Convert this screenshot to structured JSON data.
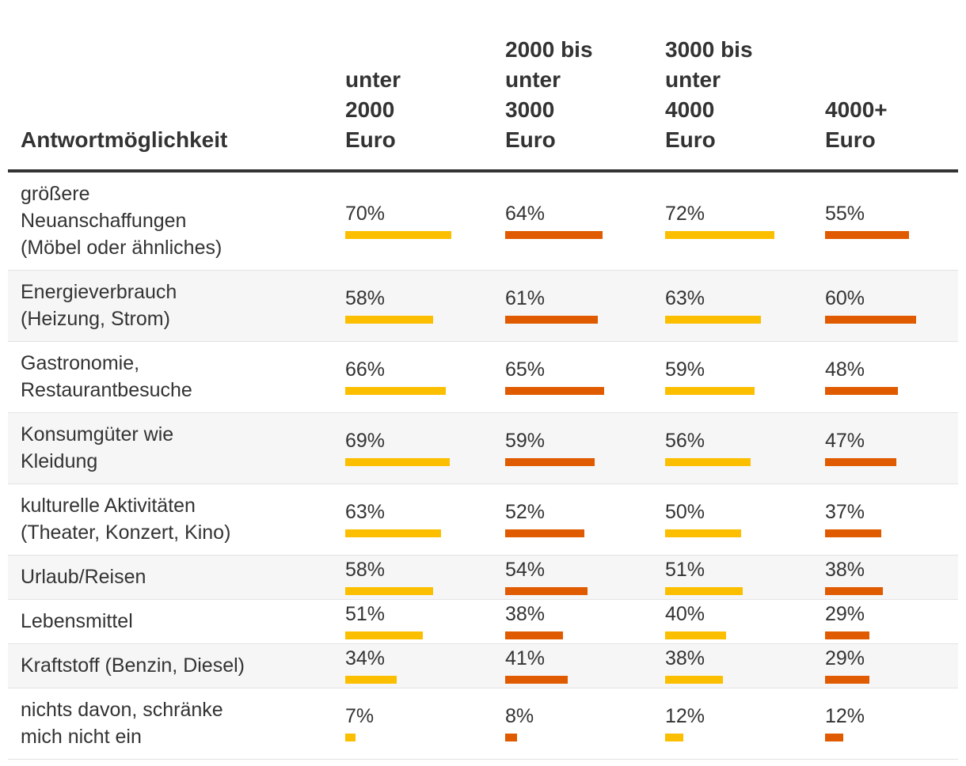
{
  "chart_data": {
    "type": "table",
    "title": "",
    "columns": [
      {
        "label_lines": [
          "Antwortmöglichkeit"
        ]
      },
      {
        "label_lines": [
          "unter",
          "2000",
          "Euro"
        ]
      },
      {
        "label_lines": [
          "2000 bis",
          "unter",
          "3000",
          "Euro"
        ]
      },
      {
        "label_lines": [
          "3000 bis",
          "unter",
          "4000",
          "Euro"
        ]
      },
      {
        "label_lines": [
          "4000+",
          "Euro"
        ]
      }
    ],
    "value_max": 100,
    "bar_colors": [
      "#fcbf00",
      "#e05b00",
      "#fcbf00",
      "#e05b00"
    ],
    "rows": [
      {
        "label_lines": [
          "größere",
          "Neuanschaffungen",
          "(Möbel oder ähnliches)"
        ],
        "values": [
          70,
          64,
          72,
          55
        ],
        "display": [
          "70%",
          "64%",
          "72%",
          "55%"
        ]
      },
      {
        "label_lines": [
          "Energieverbrauch",
          "(Heizung, Strom)"
        ],
        "values": [
          58,
          61,
          63,
          60
        ],
        "display": [
          "58%",
          "61%",
          "63%",
          "60%"
        ]
      },
      {
        "label_lines": [
          "Gastronomie,",
          "Restaurantbesuche"
        ],
        "values": [
          66,
          65,
          59,
          48
        ],
        "display": [
          "66%",
          "65%",
          "59%",
          "48%"
        ]
      },
      {
        "label_lines": [
          "Konsumgüter wie",
          "Kleidung"
        ],
        "values": [
          69,
          59,
          56,
          47
        ],
        "display": [
          "69%",
          "59%",
          "56%",
          "47%"
        ]
      },
      {
        "label_lines": [
          "kulturelle Aktivitäten",
          "(Theater, Konzert, Kino)"
        ],
        "values": [
          63,
          52,
          50,
          37
        ],
        "display": [
          "63%",
          "52%",
          "50%",
          "37%"
        ]
      },
      {
        "label_lines": [
          "Urlaub/Reisen"
        ],
        "values": [
          58,
          54,
          51,
          38
        ],
        "display": [
          "58%",
          "54%",
          "51%",
          "38%"
        ]
      },
      {
        "label_lines": [
          "Lebensmittel"
        ],
        "values": [
          51,
          38,
          40,
          29
        ],
        "display": [
          "51%",
          "38%",
          "40%",
          "29%"
        ]
      },
      {
        "label_lines": [
          "Kraftstoff (Benzin, Diesel)"
        ],
        "values": [
          34,
          41,
          38,
          29
        ],
        "display": [
          "34%",
          "41%",
          "38%",
          "29%"
        ]
      },
      {
        "label_lines": [
          "nichts davon, schränke",
          "mich nicht ein"
        ],
        "values": [
          7,
          8,
          12,
          12
        ],
        "display": [
          "7%",
          "8%",
          "12%",
          "12%"
        ]
      }
    ]
  }
}
